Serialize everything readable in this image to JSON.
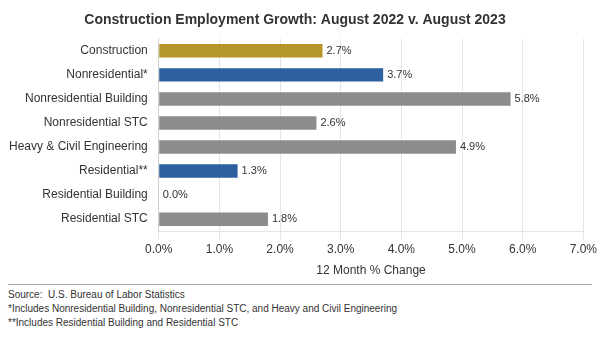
{
  "chart_data": {
    "type": "bar",
    "orientation": "horizontal",
    "title": "Construction Employment Growth: August 2022 v. August 2023",
    "categories": [
      "Residential STC",
      "Residential Building",
      "Residential**",
      "Heavy & Civil Engineering",
      "Nonresidential STC",
      "Nonresidential Building",
      "Nonresidential*",
      "Construction"
    ],
    "values": [
      1.8,
      0.0,
      1.3,
      4.9,
      2.6,
      5.8,
      3.7,
      2.7
    ],
    "value_labels": [
      "1.8%",
      "0.0%",
      "1.3%",
      "4.9%",
      "2.6%",
      "5.8%",
      "3.7%",
      "2.7%"
    ],
    "data_labels": true,
    "colors": [
      "#8c8c8c",
      "#8c8c8c",
      "#2e5f9e",
      "#8c8c8c",
      "#8c8c8c",
      "#8c8c8c",
      "#2e5f9e",
      "#b5962a"
    ],
    "xlabel": "12 Month % Change",
    "xlim": [
      0,
      7.0
    ],
    "xticks": [
      {
        "value": 0.0,
        "label": "0.0%"
      },
      {
        "value": 1.0,
        "label": "1.0%"
      },
      {
        "value": 2.0,
        "label": "2.0%"
      },
      {
        "value": 3.0,
        "label": "3.0%"
      },
      {
        "value": 4.0,
        "label": "4.0%"
      },
      {
        "value": 5.0,
        "label": "5.0%"
      },
      {
        "value": 6.0,
        "label": "6.0%"
      },
      {
        "value": 7.0,
        "label": "7.0%"
      }
    ],
    "grid": true,
    "annotations": [
      "Source:  U.S. Bureau of Labor Statistics",
      "*Includes Nonresidential Building, Nonresidential STC, and Heavy and Civil Engineering",
      "**Includes Residential Building and Residential STC"
    ]
  }
}
